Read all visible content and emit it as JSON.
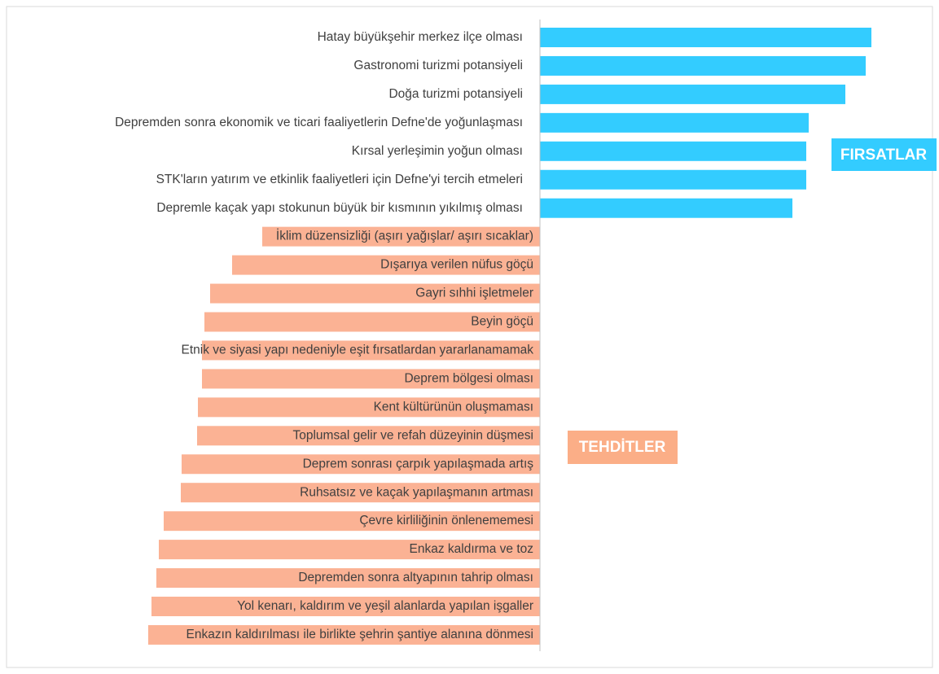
{
  "chart_data": {
    "type": "diverging-bar",
    "categories": [
      "Hatay büyükşehir merkez ilçe olması",
      "Gastronomi turizmi potansiyeli",
      "Doğa turizmi potansiyeli",
      "Depremden sonra ekonomik ve ticari faaliyetlerin Defne'de yoğunlaşması",
      "Kırsal yerleşimin yoğun olması",
      "STK'ların yatırım ve etkinlik faaliyetleri için Defne'yi tercih etmeleri",
      "Depremle kaçak yapı stokunun büyük bir kısmının yıkılmış olması",
      "İklim düzensizliği (aşırı yağışlar/ aşırı sıcaklar)",
      "Dışarıya verilen nüfus göçü",
      "Gayri sıhhi işletmeler",
      "Beyin göçü",
      "Etnik ve siyasi yapı nedeniyle eşit fırsatlardan yararlanamamak",
      "Deprem bölgesi olması",
      "Kent kültürünün oluşmaması",
      "Toplumsal gelir ve refah düzeyinin düşmesi",
      "Deprem sonrası çarpık yapılaşmada artış",
      "Ruhsatsız ve kaçak yapılaşmanın artması",
      "Çevre kirliliğinin önlenememesi",
      "Enkaz kaldırma ve toz",
      "Depremden sonra altyapının tahrip olması",
      "Yol kenarı, kaldırım ve yeşil alanlarda yapılan işgaller",
      "Enkazın kaldırılması ile birlikte şehrin şantiye alanına dönmesi"
    ],
    "series": [
      {
        "name": "FIRSATLAR",
        "color": "#33ccff",
        "values": [
          4.07,
          4.0,
          3.75,
          3.3,
          3.27,
          3.27,
          3.1,
          null,
          null,
          null,
          null,
          null,
          null,
          null,
          null,
          null,
          null,
          null,
          null,
          null,
          null,
          null
        ]
      },
      {
        "name": "TEHDİTLER",
        "color": "#fbb294",
        "values": [
          null,
          null,
          null,
          null,
          null,
          null,
          null,
          -3.41,
          -3.78,
          -4.05,
          -4.12,
          -4.15,
          -4.15,
          -4.2,
          -4.21,
          -4.4,
          -4.41,
          -4.62,
          -4.68,
          -4.71,
          -4.77,
          -4.81
        ]
      }
    ],
    "xlim": [
      -4.9,
      4.9
    ]
  }
}
